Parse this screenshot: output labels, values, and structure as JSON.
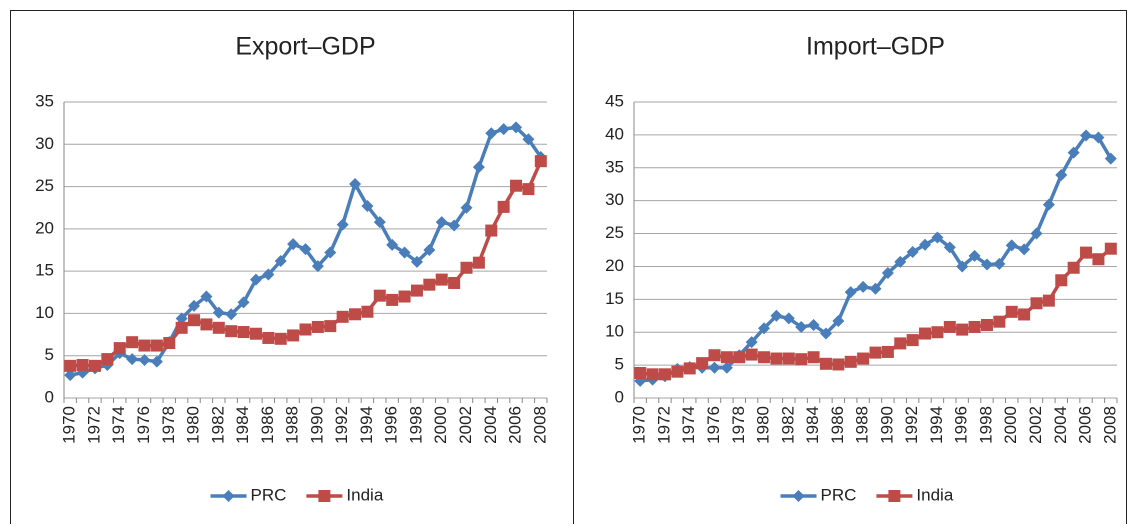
{
  "chart_data": [
    {
      "type": "line",
      "title": "Export–GDP",
      "categories": [
        "1970",
        null,
        "1972",
        null,
        "1974",
        null,
        "1976",
        null,
        "1978",
        null,
        "1980",
        null,
        "1982",
        null,
        "1984",
        null,
        "1986",
        null,
        "1988",
        null,
        "1990",
        null,
        "1992",
        null,
        "1994",
        null,
        "1996",
        null,
        "1998",
        null,
        "2000",
        null,
        "2002",
        null,
        "2004",
        null,
        "2006",
        null,
        "2008"
      ],
      "ylim": [
        0,
        35
      ],
      "yticks": [
        0,
        5,
        10,
        15,
        20,
        25,
        30,
        35
      ],
      "grid": true,
      "legend": "bottom",
      "series": [
        {
          "name": "PRC",
          "color": "#4a7ebb",
          "marker": "diamond",
          "values": [
            2.7,
            3.0,
            3.5,
            3.9,
            5.3,
            4.6,
            4.5,
            4.3,
            6.6,
            9.4,
            10.9,
            12.0,
            10.1,
            9.9,
            11.3,
            14.0,
            14.6,
            16.2,
            18.2,
            17.6,
            15.6,
            17.2,
            20.5,
            25.3,
            22.7,
            20.8,
            18.1,
            17.2,
            16.1,
            17.5,
            20.8,
            20.4,
            22.5,
            27.3,
            31.3,
            31.8,
            32.0,
            30.6,
            28.5
          ]
        },
        {
          "name": "India",
          "color": "#be4b48",
          "marker": "square",
          "values": [
            3.8,
            3.9,
            3.8,
            4.6,
            5.9,
            6.6,
            6.2,
            6.2,
            6.5,
            8.3,
            9.2,
            8.7,
            8.3,
            7.9,
            7.8,
            7.6,
            7.1,
            7.0,
            7.4,
            8.1,
            8.4,
            8.5,
            9.6,
            9.9,
            10.2,
            12.1,
            11.6,
            12.0,
            12.7,
            13.4,
            14.0,
            13.6,
            15.4,
            16.0,
            19.8,
            22.6,
            25.1,
            24.7,
            28.0
          ]
        }
      ]
    },
    {
      "type": "line",
      "title": "Import–GDP",
      "categories": [
        "1970",
        null,
        "1972",
        null,
        "1974",
        null,
        "1976",
        null,
        "1978",
        null,
        "1980",
        null,
        "1982",
        null,
        "1984",
        null,
        "1986",
        null,
        "1988",
        null,
        "1990",
        null,
        "1992",
        null,
        "1994",
        null,
        "1996",
        null,
        "1998",
        null,
        "2000",
        null,
        "2002",
        null,
        "2004",
        null,
        "2006",
        null,
        "2008"
      ],
      "ylim": [
        0,
        45
      ],
      "yticks": [
        0,
        5,
        10,
        15,
        20,
        25,
        30,
        35,
        40,
        45
      ],
      "grid": true,
      "legend": "bottom",
      "series": [
        {
          "name": "PRC",
          "color": "#4a7ebb",
          "marker": "diamond",
          "values": [
            2.6,
            2.8,
            3.3,
            4.4,
            4.7,
            4.6,
            4.6,
            4.6,
            6.5,
            8.5,
            10.6,
            12.5,
            12.1,
            10.8,
            11.1,
            9.8,
            11.7,
            16.1,
            16.9,
            16.6,
            19.0,
            20.7,
            22.2,
            23.3,
            24.4,
            22.9,
            20.0,
            21.6,
            20.3,
            20.4,
            23.2,
            22.6,
            25.0,
            29.4,
            33.9,
            37.3,
            39.9,
            39.6,
            36.4
          ]
        },
        {
          "name": "India",
          "color": "#be4b48",
          "marker": "square",
          "values": [
            3.8,
            3.6,
            3.6,
            4.0,
            4.5,
            5.3,
            6.5,
            6.2,
            6.2,
            6.6,
            6.2,
            6.0,
            6.0,
            5.9,
            6.2,
            5.2,
            5.1,
            5.5,
            6.0,
            6.9,
            7.0,
            8.3,
            8.8,
            9.8,
            10.0,
            10.8,
            10.4,
            10.8,
            11.1,
            11.6,
            13.1,
            12.7,
            14.4,
            14.8,
            17.9,
            19.8,
            22.1,
            21.1,
            22.7
          ]
        }
      ]
    }
  ]
}
